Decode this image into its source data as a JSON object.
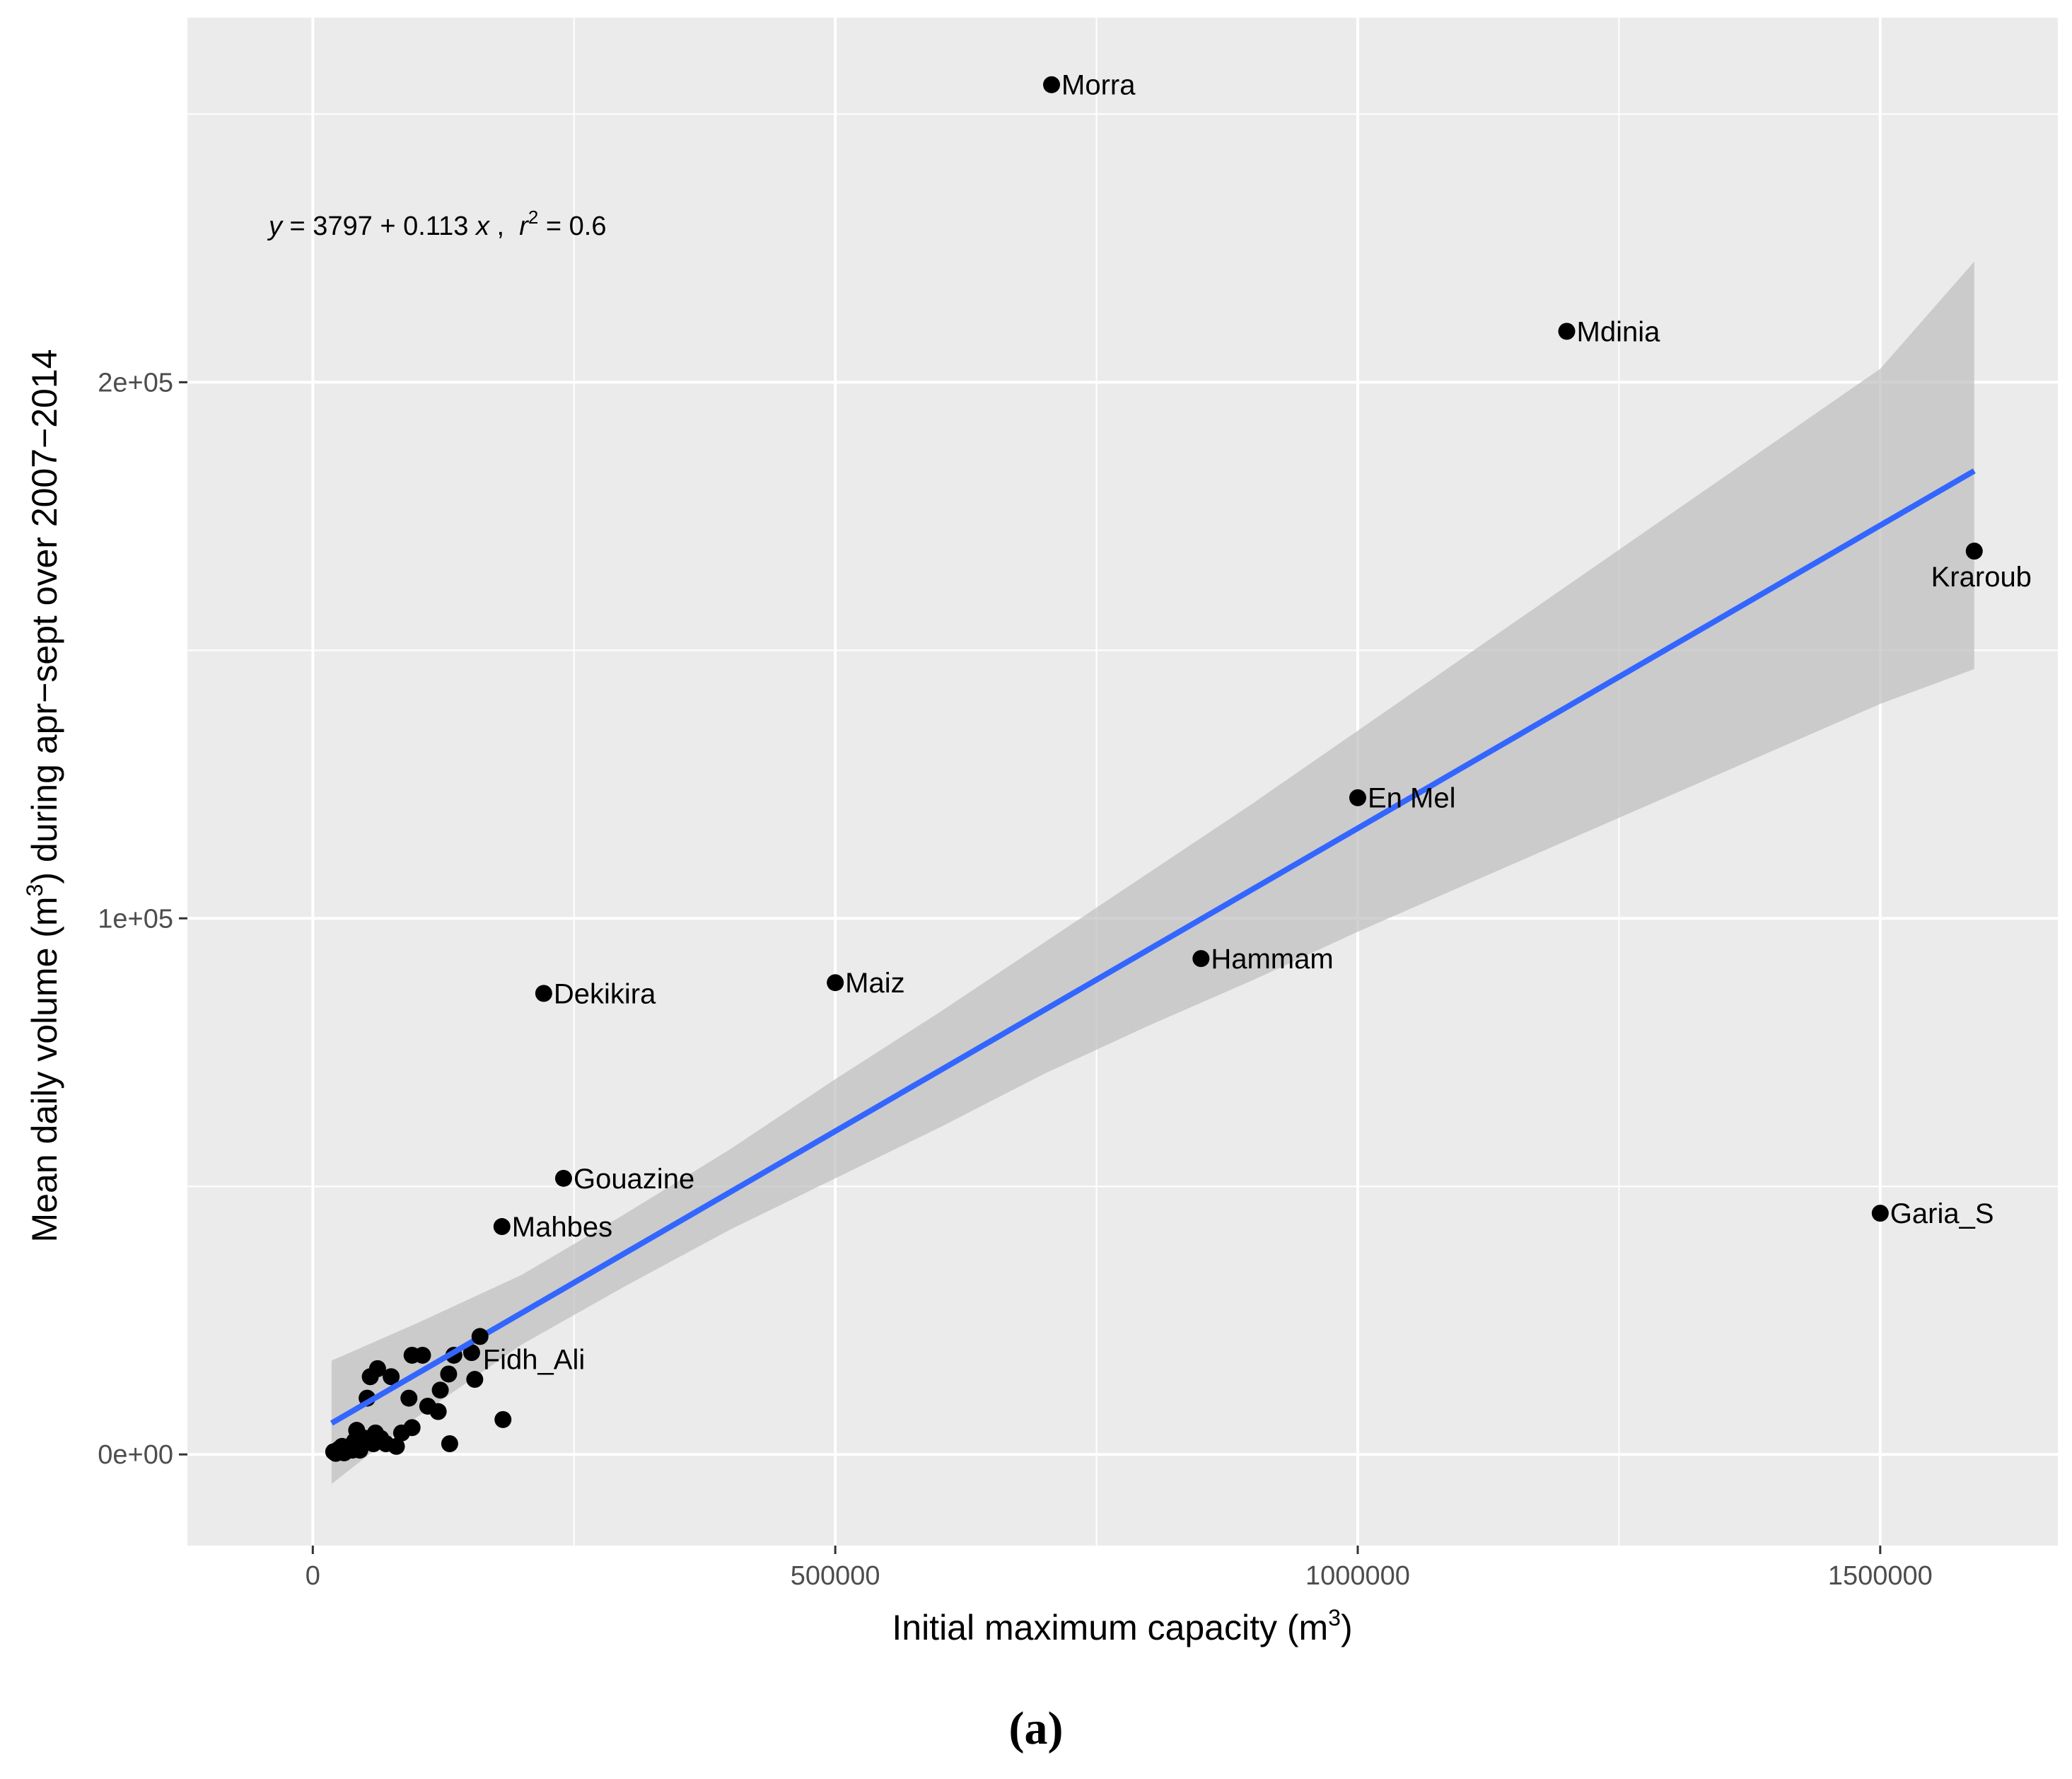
{
  "chart_data": {
    "type": "scatter",
    "title": "",
    "caption": "(a)",
    "xlabel": {
      "text": "Initial maximum capacity (m",
      "sup": "3",
      "end": ")"
    },
    "ylabel": {
      "text": "Mean daily volume (m",
      "sup": "3",
      "end": ") during apr−sept over 2007−2014"
    },
    "xlim": [
      -120000,
      1670000
    ],
    "ylim": [
      -17000,
      268000
    ],
    "x_ticks": [
      {
        "value": 0,
        "label": "0"
      },
      {
        "value": 500000,
        "label": "500000"
      },
      {
        "value": 1000000,
        "label": "1000000"
      },
      {
        "value": 1500000,
        "label": "1500000"
      }
    ],
    "y_ticks": [
      {
        "value": 0,
        "label": "0e+00"
      },
      {
        "value": 100000,
        "label": "1e+05"
      },
      {
        "value": 200000,
        "label": "2e+05"
      }
    ],
    "x_minor": [
      250000,
      750000,
      1250000
    ],
    "y_minor": [
      50000,
      150000,
      250000
    ],
    "grid": true,
    "equation": {
      "lhs": "y",
      "rhs": " = 3797 + 0.113 ",
      "x": "x",
      "sep": " ,  ",
      "r": "r",
      "r_sup": "2",
      "r_val": " = 0.6"
    },
    "fit": {
      "intercept": 3797,
      "slope": 0.113,
      "r2": 0.6,
      "x_range": [
        18000,
        1590000
      ],
      "color": "#3366ff"
    },
    "ribbon": [
      {
        "x": 18000,
        "lo": -5500,
        "hi": 17500
      },
      {
        "x": 100000,
        "lo": 7000,
        "hi": 24500
      },
      {
        "x": 200000,
        "lo": 20500,
        "hi": 33500
      },
      {
        "x": 300000,
        "lo": 31500,
        "hi": 45000
      },
      {
        "x": 400000,
        "lo": 42000,
        "hi": 57000
      },
      {
        "x": 500000,
        "lo": 51500,
        "hi": 70000
      },
      {
        "x": 600000,
        "lo": 61000,
        "hi": 82500
      },
      {
        "x": 700000,
        "lo": 71000,
        "hi": 95500
      },
      {
        "x": 800000,
        "lo": 80000,
        "hi": 108500
      },
      {
        "x": 900000,
        "lo": 88500,
        "hi": 121500
      },
      {
        "x": 1000000,
        "lo": 97500,
        "hi": 135000
      },
      {
        "x": 1100000,
        "lo": 106000,
        "hi": 148500
      },
      {
        "x": 1200000,
        "lo": 114500,
        "hi": 162000
      },
      {
        "x": 1300000,
        "lo": 123000,
        "hi": 175500
      },
      {
        "x": 1400000,
        "lo": 131500,
        "hi": 189000
      },
      {
        "x": 1500000,
        "lo": 140000,
        "hi": 202500
      },
      {
        "x": 1590000,
        "lo": 146500,
        "hi": 222500
      }
    ],
    "labeled_points": [
      {
        "name": "Morra",
        "x": 707000,
        "y": 255500,
        "pos": "right"
      },
      {
        "name": "Mdinia",
        "x": 1200000,
        "y": 209500,
        "pos": "right"
      },
      {
        "name": "Kraroub",
        "x": 1590000,
        "y": 168500,
        "pos": "below"
      },
      {
        "name": "En Mel",
        "x": 1000000,
        "y": 122500,
        "pos": "right"
      },
      {
        "name": "Hammam",
        "x": 850000,
        "y": 92500,
        "pos": "right"
      },
      {
        "name": "Maiz",
        "x": 500000,
        "y": 88000,
        "pos": "right"
      },
      {
        "name": "Dekikira",
        "x": 221000,
        "y": 86000,
        "pos": "right"
      },
      {
        "name": "Gouazine",
        "x": 240000,
        "y": 51500,
        "pos": "right"
      },
      {
        "name": "Mahbes",
        "x": 181000,
        "y": 42500,
        "pos": "right"
      },
      {
        "name": "Garia_S",
        "x": 1500000,
        "y": 45000,
        "pos": "right"
      },
      {
        "name": "Fidh_Ali",
        "x": 160000,
        "y": 22000,
        "pos": "right-below"
      }
    ],
    "points": [
      {
        "x": 182000,
        "y": 6500
      },
      {
        "x": 131000,
        "y": 2000
      },
      {
        "x": 80000,
        "y": 1500
      },
      {
        "x": 20000,
        "y": 500
      },
      {
        "x": 25000,
        "y": 1000
      },
      {
        "x": 30000,
        "y": 300
      },
      {
        "x": 35000,
        "y": 1500
      },
      {
        "x": 40000,
        "y": 2500
      },
      {
        "x": 42000,
        "y": 4500
      },
      {
        "x": 45000,
        "y": 800
      },
      {
        "x": 50000,
        "y": 3000
      },
      {
        "x": 52000,
        "y": 10500
      },
      {
        "x": 55000,
        "y": 14500
      },
      {
        "x": 58000,
        "y": 2000
      },
      {
        "x": 60000,
        "y": 4000
      },
      {
        "x": 62000,
        "y": 16000
      },
      {
        "x": 65000,
        "y": 3000
      },
      {
        "x": 70000,
        "y": 2000
      },
      {
        "x": 75000,
        "y": 14500
      },
      {
        "x": 85000,
        "y": 4000
      },
      {
        "x": 92000,
        "y": 10500
      },
      {
        "x": 95000,
        "y": 5000
      },
      {
        "x": 95000,
        "y": 18500
      },
      {
        "x": 105000,
        "y": 18500
      },
      {
        "x": 110000,
        "y": 9000
      },
      {
        "x": 120000,
        "y": 8000
      },
      {
        "x": 122000,
        "y": 12000
      },
      {
        "x": 130000,
        "y": 15000
      },
      {
        "x": 135000,
        "y": 18500
      },
      {
        "x": 152000,
        "y": 19000
      },
      {
        "x": 155000,
        "y": 14000
      },
      {
        "x": 38000,
        "y": 800
      },
      {
        "x": 28000,
        "y": 1500
      },
      {
        "x": 48000,
        "y": 2000
      },
      {
        "x": 22000,
        "y": 200
      }
    ],
    "panel_bg": "#ebebeb",
    "grid_color": "#ffffff",
    "ribbon_color": "#bdbdbd",
    "point_color": "#000000"
  }
}
